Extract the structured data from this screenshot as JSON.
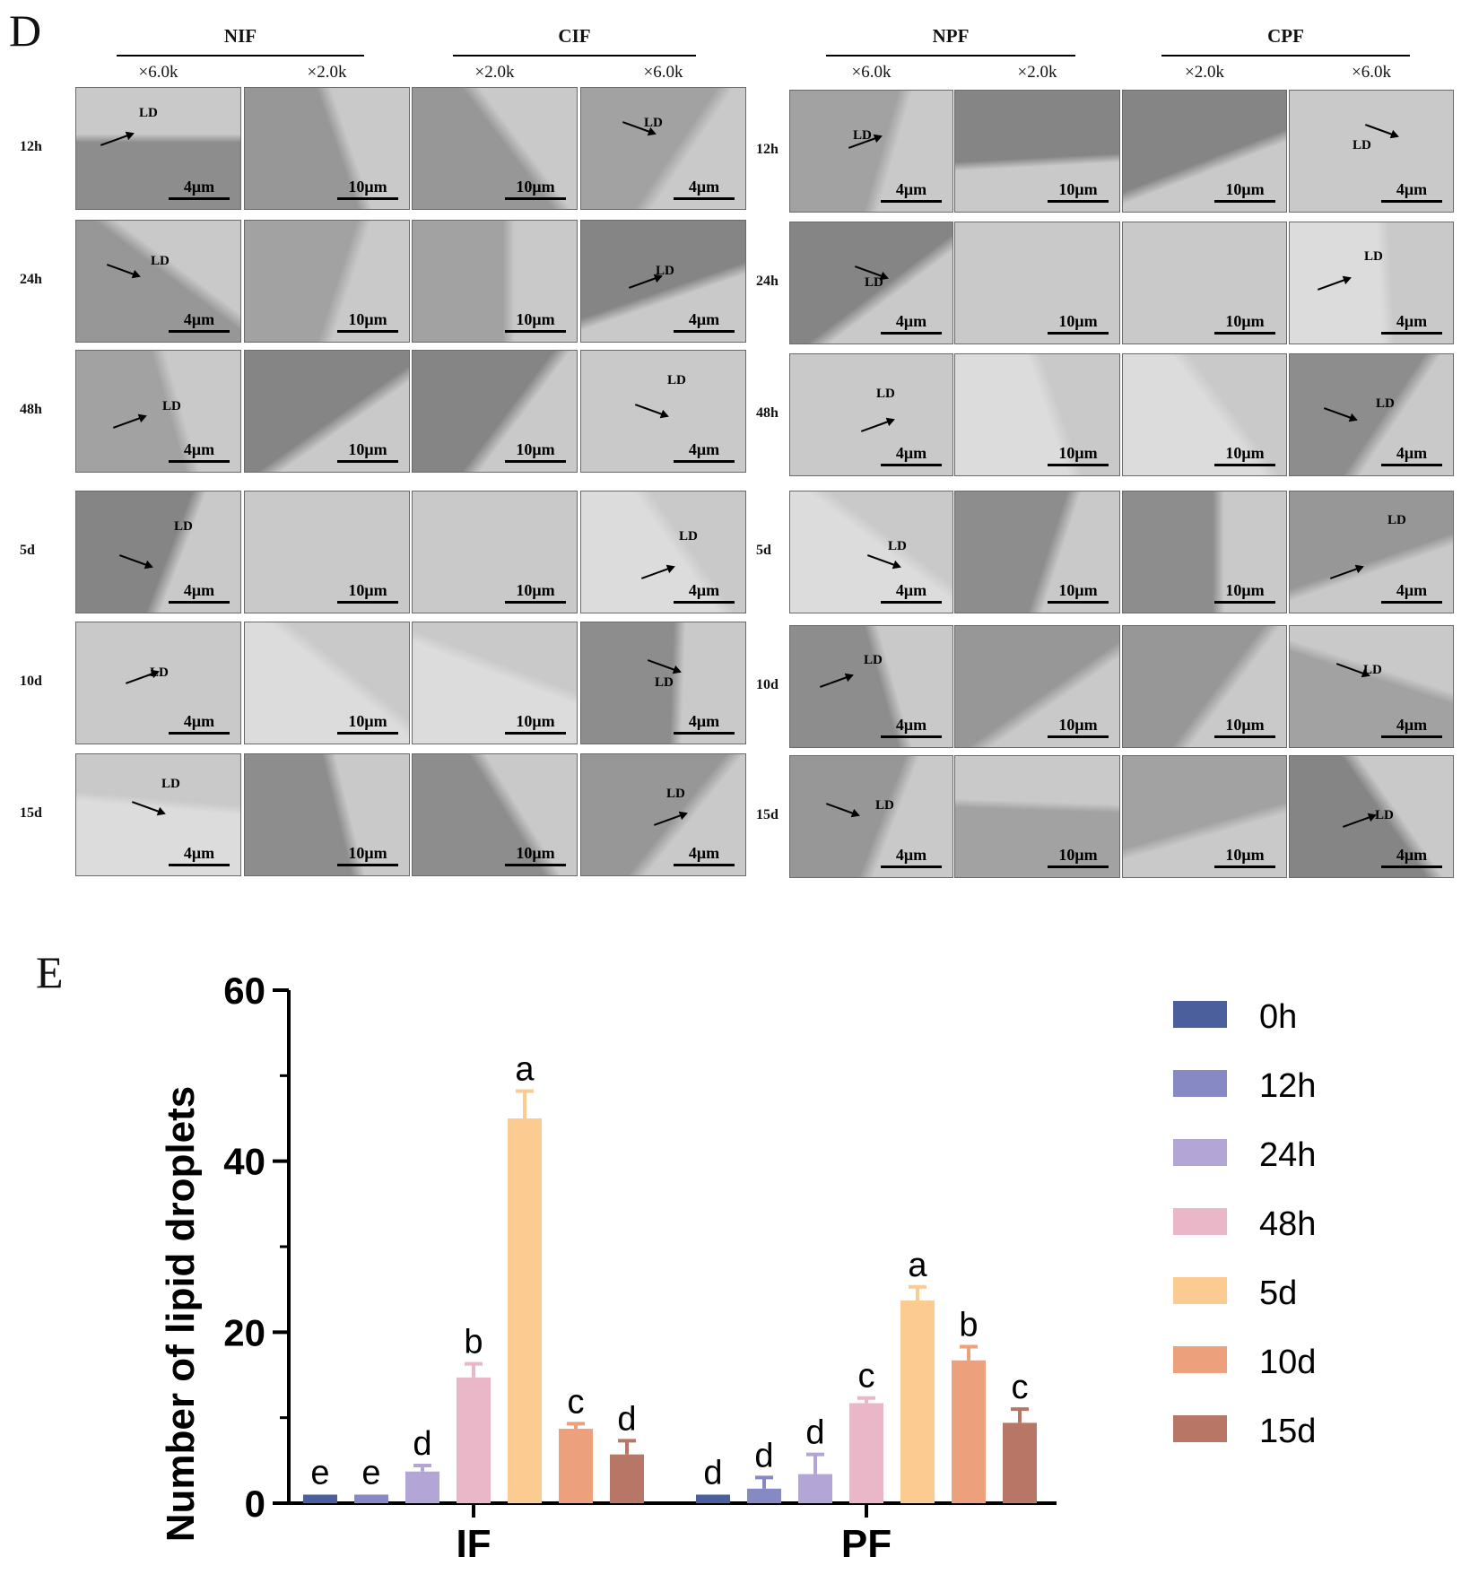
{
  "panel_d": {
    "letter": "D",
    "groups": [
      {
        "name": "NIF",
        "magnifications": [
          "×6.0k",
          "×2.0k"
        ]
      },
      {
        "name": "CIF",
        "magnifications": [
          "×2.0k",
          "×6.0k"
        ]
      },
      {
        "name": "NPF",
        "magnifications": [
          "×6.0k",
          "×2.0k"
        ]
      },
      {
        "name": "CPF",
        "magnifications": [
          "×2.0k",
          "×6.0k"
        ]
      }
    ],
    "rows": [
      "12h",
      "24h",
      "48h",
      "5d",
      "10d",
      "15d"
    ],
    "scale_6k": "4μm",
    "scale_2k": "10μm",
    "ld_label": "LD",
    "tile_bg_colors": [
      "#8d8d8d",
      "#979797",
      "#a2a2a2",
      "#858585",
      "#c9c9c9",
      "#dcdcdc"
    ]
  },
  "panel_e": {
    "letter": "E",
    "chart_data": {
      "type": "bar",
      "title": "",
      "xlabel": "",
      "ylabel": "Number of lipid droplets",
      "ylim": [
        0,
        60
      ],
      "yticks": [
        "0",
        "20",
        "40",
        "60"
      ],
      "categories": [
        "IF",
        "PF"
      ],
      "series": [
        {
          "name": "0h",
          "color": "#4a5f9c",
          "values": [
            1.0,
            1.0
          ],
          "errors": [
            0.0,
            0.0
          ],
          "letters": [
            "e",
            "d"
          ]
        },
        {
          "name": "12h",
          "color": "#8789c4",
          "values": [
            1.0,
            1.7
          ],
          "errors": [
            0.0,
            1.3
          ],
          "letters": [
            "e",
            "d"
          ]
        },
        {
          "name": "24h",
          "color": "#b3a5d6",
          "values": [
            3.7,
            3.4
          ],
          "errors": [
            0.7,
            2.3
          ],
          "letters": [
            "d",
            "d"
          ]
        },
        {
          "name": "48h",
          "color": "#eab7c8",
          "values": [
            14.7,
            11.7
          ],
          "errors": [
            1.6,
            0.6
          ],
          "letters": [
            "b",
            "c"
          ]
        },
        {
          "name": "5d",
          "color": "#fbcb92",
          "values": [
            45.0,
            23.7
          ],
          "errors": [
            3.2,
            1.6
          ],
          "letters": [
            "a",
            "a"
          ]
        },
        {
          "name": "10d",
          "color": "#eca07c",
          "values": [
            8.7,
            16.7
          ],
          "errors": [
            0.6,
            1.6
          ],
          "letters": [
            "c",
            "b"
          ]
        },
        {
          "name": "15d",
          "color": "#b87766",
          "values": [
            5.7,
            9.4
          ],
          "errors": [
            1.6,
            1.6
          ],
          "letters": [
            "d",
            "c"
          ]
        }
      ]
    }
  }
}
